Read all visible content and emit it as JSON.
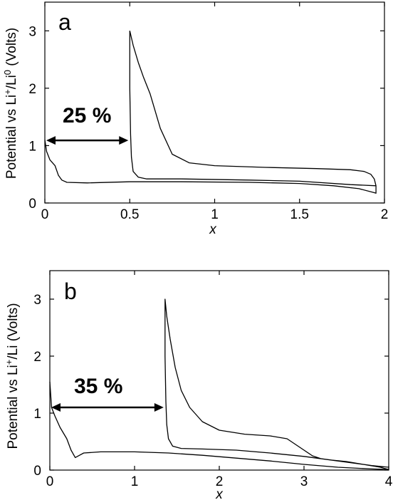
{
  "chart_data": [
    {
      "type": "line",
      "panel_label": "a",
      "xlabel": "x",
      "ylabel": {
        "prefix": "Potential vs  Li",
        "sup1": "+",
        "mid": "/Li",
        "sup2": "0",
        "suffix": "  (Volts)"
      },
      "xlim": [
        0,
        2
      ],
      "ylim": [
        0,
        3.5
      ],
      "xticks": [
        0,
        0.5,
        1,
        1.5,
        2
      ],
      "xtick_labels": [
        "0",
        "0.5",
        "1",
        "1.5",
        "2"
      ],
      "yticks": [
        0,
        1,
        2,
        3
      ],
      "ytick_labels": [
        "0",
        "1",
        "2",
        "3"
      ],
      "annotation": {
        "text": "25 %",
        "arrow_from_x": 0.0,
        "arrow_to_x": 0.5,
        "arrow_y": 1.09
      },
      "series": [
        {
          "points": [
            [
              0.0,
              1.1
            ],
            [
              0.01,
              0.9
            ],
            [
              0.03,
              0.75
            ],
            [
              0.06,
              0.65
            ],
            [
              0.08,
              0.48
            ],
            [
              0.1,
              0.4
            ],
            [
              0.13,
              0.36
            ],
            [
              0.25,
              0.35
            ],
            [
              0.5,
              0.37
            ],
            [
              0.8,
              0.37
            ],
            [
              1.2,
              0.36
            ],
            [
              1.5,
              0.34
            ],
            [
              1.7,
              0.3
            ],
            [
              1.85,
              0.25
            ],
            [
              1.94,
              0.18
            ],
            [
              1.95,
              0.17
            ],
            [
              1.95,
              0.3
            ],
            [
              1.94,
              0.42
            ],
            [
              1.92,
              0.5
            ],
            [
              1.88,
              0.55
            ],
            [
              1.8,
              0.58
            ],
            [
              1.6,
              0.6
            ],
            [
              1.3,
              0.62
            ],
            [
              1.0,
              0.65
            ],
            [
              0.85,
              0.7
            ],
            [
              0.75,
              0.85
            ],
            [
              0.68,
              1.3
            ],
            [
              0.62,
              1.9
            ],
            [
              0.58,
              2.2
            ],
            [
              0.55,
              2.45
            ],
            [
              0.52,
              2.75
            ],
            [
              0.5,
              3.0
            ]
          ]
        },
        {
          "points": [
            [
              0.5,
              3.0
            ],
            [
              0.5,
              2.0
            ],
            [
              0.505,
              1.2
            ],
            [
              0.51,
              0.8
            ],
            [
              0.52,
              0.55
            ],
            [
              0.55,
              0.45
            ],
            [
              0.6,
              0.42
            ],
            [
              0.8,
              0.42
            ],
            [
              1.2,
              0.4
            ],
            [
              1.5,
              0.38
            ],
            [
              1.8,
              0.32
            ],
            [
              1.95,
              0.3
            ]
          ]
        }
      ]
    },
    {
      "type": "line",
      "panel_label": "b",
      "xlabel": "x",
      "ylabel": {
        "prefix": "Potential vs Li",
        "sup1": "+",
        "mid": "/Li (Volts)",
        "sup2": "",
        "suffix": ""
      },
      "xlim": [
        0,
        4
      ],
      "ylim": [
        0,
        3.5
      ],
      "xticks": [
        0,
        1,
        2,
        3,
        4
      ],
      "xtick_labels": [
        "0",
        "1",
        "2",
        "3",
        "4"
      ],
      "yticks": [
        0,
        1,
        2,
        3
      ],
      "ytick_labels": [
        "0",
        "1",
        "2",
        "3"
      ],
      "annotation": {
        "text": "35 %",
        "arrow_from_x": 0.0,
        "arrow_to_x": 1.36,
        "arrow_y": 1.1
      },
      "series": [
        {
          "points": [
            [
              0.0,
              1.55
            ],
            [
              0.02,
              1.1
            ],
            [
              0.06,
              0.95
            ],
            [
              0.12,
              0.75
            ],
            [
              0.2,
              0.55
            ],
            [
              0.25,
              0.35
            ],
            [
              0.3,
              0.22
            ],
            [
              0.35,
              0.26
            ],
            [
              0.4,
              0.3
            ],
            [
              0.6,
              0.32
            ],
            [
              1.0,
              0.32
            ],
            [
              1.4,
              0.3
            ],
            [
              1.8,
              0.26
            ],
            [
              2.2,
              0.21
            ],
            [
              2.6,
              0.16
            ],
            [
              3.0,
              0.1
            ],
            [
              3.4,
              0.05
            ],
            [
              3.8,
              0.02
            ],
            [
              4.0,
              0.01
            ]
          ]
        },
        {
          "points": [
            [
              4.0,
              0.01
            ],
            [
              3.9,
              0.05
            ],
            [
              3.7,
              0.1
            ],
            [
              3.5,
              0.15
            ],
            [
              3.3,
              0.18
            ],
            [
              3.2,
              0.2
            ],
            [
              3.1,
              0.25
            ],
            [
              3.0,
              0.35
            ],
            [
              2.9,
              0.45
            ],
            [
              2.8,
              0.55
            ],
            [
              2.6,
              0.6
            ],
            [
              2.3,
              0.63
            ],
            [
              2.0,
              0.7
            ],
            [
              1.8,
              0.85
            ],
            [
              1.65,
              1.1
            ],
            [
              1.55,
              1.4
            ],
            [
              1.48,
              1.8
            ],
            [
              1.42,
              2.3
            ],
            [
              1.38,
              2.7
            ],
            [
              1.36,
              3.0
            ],
            [
              1.36,
              2.0
            ],
            [
              1.37,
              1.2
            ],
            [
              1.38,
              0.8
            ],
            [
              1.4,
              0.55
            ],
            [
              1.45,
              0.42
            ],
            [
              1.55,
              0.38
            ],
            [
              1.8,
              0.37
            ],
            [
              2.2,
              0.35
            ],
            [
              2.6,
              0.3
            ],
            [
              3.0,
              0.24
            ],
            [
              3.4,
              0.16
            ],
            [
              3.8,
              0.08
            ],
            [
              4.0,
              0.05
            ]
          ]
        }
      ]
    }
  ]
}
